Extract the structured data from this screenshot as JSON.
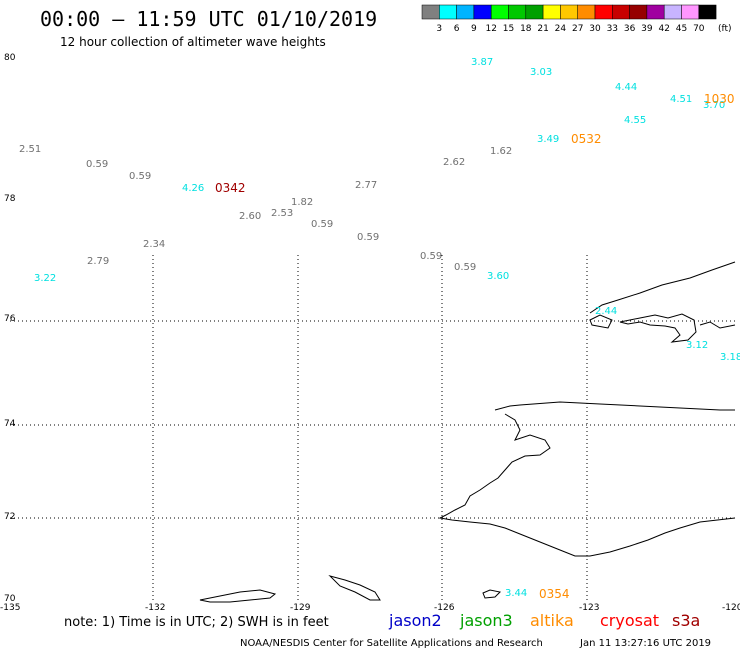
{
  "title": "00:00 – 11:59 UTC 01/10/2019",
  "subtitle": "12 hour collection of altimeter wave heights",
  "legend": {
    "unit": "(ft)",
    "colors": [
      "#808080",
      "#00ffff",
      "#00b4ff",
      "#0000ff",
      "#00ff00",
      "#00c800",
      "#00a000",
      "#ffff00",
      "#ffc800",
      "#ff8c00",
      "#ff0000",
      "#c80000",
      "#960000",
      "#a000a0",
      "#c8b4ff",
      "#ff96ff",
      "#000000"
    ],
    "labels": [
      "3",
      "6",
      "9",
      "12",
      "15",
      "18",
      "21",
      "24",
      "27",
      "30",
      "33",
      "36",
      "39",
      "42",
      "45",
      "70"
    ]
  },
  "axes": {
    "lat_labels": [
      "80",
      "78",
      "76",
      "74",
      "72",
      "70"
    ],
    "lon_labels": [
      "-135",
      "-132",
      "-129",
      "-126",
      "-123",
      "-120"
    ]
  },
  "wave_heights": [
    {
      "value": "3.87",
      "color": "#00e0e0"
    },
    {
      "value": "3.03",
      "color": "#00e0e0"
    },
    {
      "value": "4.44",
      "color": "#00e0e0"
    },
    {
      "value": "4.51",
      "color": "#00e0e0"
    },
    {
      "value": "3.70",
      "color": "#00e0e0"
    },
    {
      "value": "4.55",
      "color": "#00e0e0"
    },
    {
      "value": "3.49",
      "color": "#00e0e0"
    },
    {
      "value": "2.51",
      "color": "#707070"
    },
    {
      "value": "0.59",
      "color": "#707070"
    },
    {
      "value": "0.59",
      "color": "#707070"
    },
    {
      "value": "4.26",
      "color": "#00e0e0"
    },
    {
      "value": "2.62",
      "color": "#707070"
    },
    {
      "value": "1.62",
      "color": "#707070"
    },
    {
      "value": "2.77",
      "color": "#707070"
    },
    {
      "value": "1.82",
      "color": "#707070"
    },
    {
      "value": "2.60",
      "color": "#707070"
    },
    {
      "value": "2.53",
      "color": "#707070"
    },
    {
      "value": "0.59",
      "color": "#707070"
    },
    {
      "value": "0.59",
      "color": "#707070"
    },
    {
      "value": "2.34",
      "color": "#707070"
    },
    {
      "value": "0.59",
      "color": "#707070"
    },
    {
      "value": "0.59",
      "color": "#707070"
    },
    {
      "value": "2.79",
      "color": "#707070"
    },
    {
      "value": "3.22",
      "color": "#00e0e0"
    },
    {
      "value": "3.60",
      "color": "#00e0e0"
    },
    {
      "value": "3.12",
      "color": "#00e0e0"
    },
    {
      "value": "3.18",
      "color": "#00e0e0"
    },
    {
      "value": "2.44",
      "color": "#00e0e0"
    },
    {
      "value": "3.44",
      "color": "#00e0e0"
    }
  ],
  "pass_times": [
    {
      "value": "1030",
      "color": "#ff8c00"
    },
    {
      "value": "0532",
      "color": "#ff8c00"
    },
    {
      "value": "0342",
      "color": "#a00000"
    },
    {
      "value": "0354",
      "color": "#ff8c00"
    }
  ],
  "note": "note: 1) Time is in UTC; 2) SWH is in feet",
  "satellites": [
    {
      "name": "jason2",
      "color": "#0000c8"
    },
    {
      "name": "jason3",
      "color": "#00a000"
    },
    {
      "name": "altika",
      "color": "#ff8c00"
    },
    {
      "name": "cryosat",
      "color": "#ff0000"
    },
    {
      "name": "s3a",
      "color": "#a00000"
    }
  ],
  "footer_left": "NOAA/NESDIS Center for Satellite Applications and Research",
  "footer_right": "Jan 11 13:27:16 UTC 2019"
}
